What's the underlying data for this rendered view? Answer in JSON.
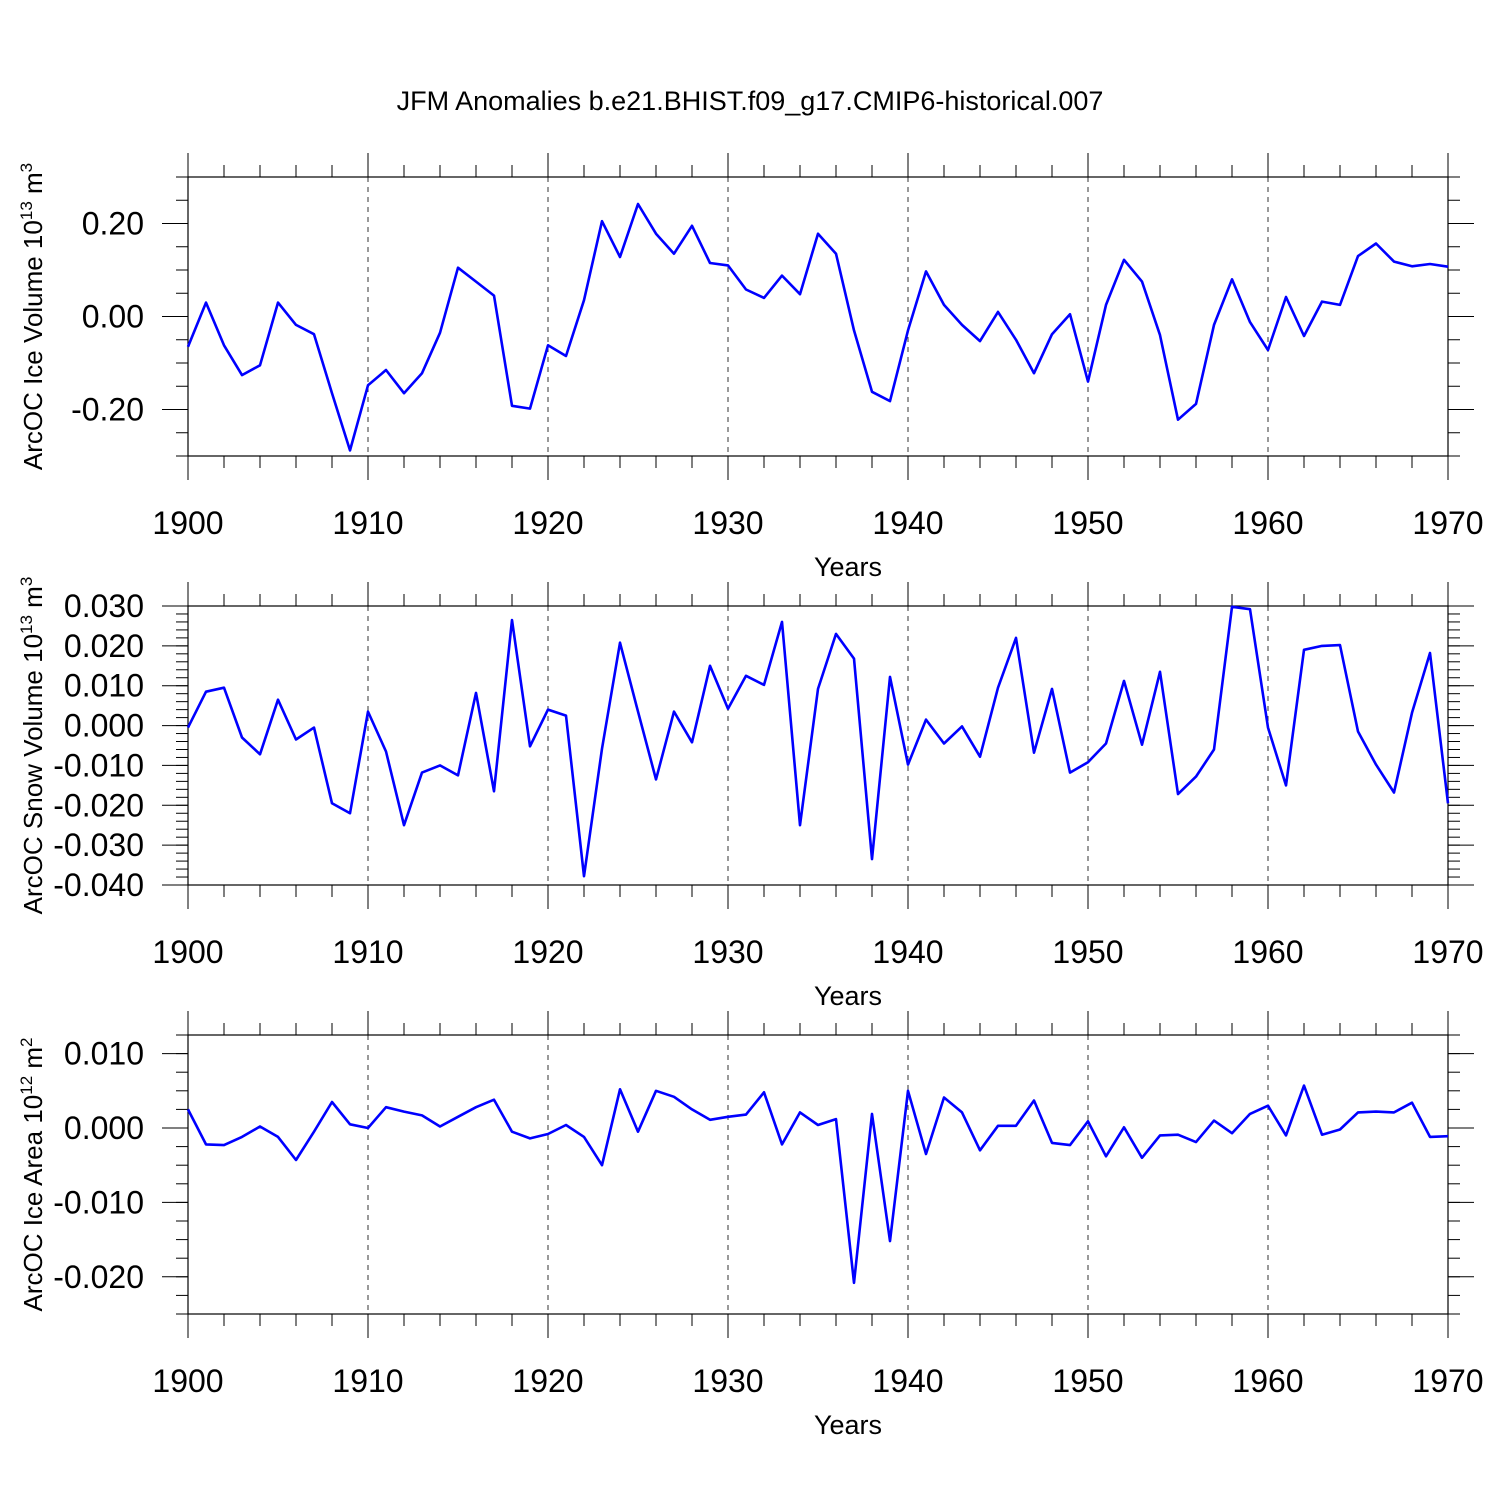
{
  "title": "JFM Anomalies b.e21.BHIST.f09_g17.CMIP6-historical.007",
  "chart_data": [
    {
      "type": "line",
      "xlabel": "Years",
      "ylabel_parts": {
        "main": "ArcOC Ice Volume 10",
        "exp": "13",
        "unit": " m",
        "unit_exp": "3"
      },
      "xlim": [
        1900,
        1970
      ],
      "ylim": [
        -0.3,
        0.3
      ],
      "yticks": [
        -0.2,
        0.0,
        0.2
      ],
      "yminor_step": 0.05,
      "ytick_labels": [
        "-0.20",
        "0.00",
        "0.20"
      ],
      "xticks": [
        1900,
        1910,
        1920,
        1930,
        1940,
        1950,
        1960,
        1970
      ],
      "xtick_labels": [
        "1900",
        "1910",
        "1920",
        "1930",
        "1940",
        "1950",
        "1960",
        "1970"
      ],
      "gridlines": [
        1910,
        1920,
        1930,
        1940,
        1950,
        1960
      ],
      "color": "#0000ff",
      "series": [
        {
          "name": "ArcOC Ice Volume",
          "x_start": 1900,
          "values": [
            -0.065,
            0.03,
            -0.062,
            -0.126,
            -0.105,
            0.03,
            -0.018,
            -0.038,
            -0.165,
            -0.288,
            -0.148,
            -0.115,
            -0.165,
            -0.122,
            -0.035,
            0.105,
            0.075,
            0.045,
            -0.192,
            -0.198,
            -0.062,
            -0.085,
            0.035,
            0.205,
            0.128,
            0.242,
            0.178,
            0.135,
            0.195,
            0.115,
            0.11,
            0.058,
            0.04,
            0.088,
            0.048,
            0.178,
            0.135,
            -0.03,
            -0.162,
            -0.182,
            -0.03,
            0.097,
            0.025,
            -0.018,
            -0.053,
            0.01,
            -0.05,
            -0.122,
            -0.038,
            0.005,
            -0.14,
            0.025,
            0.122,
            0.075,
            -0.04,
            -0.222,
            -0.188,
            -0.018,
            0.08,
            -0.012,
            -0.072,
            0.042,
            -0.042,
            0.032,
            0.025,
            0.13,
            0.157,
            0.118,
            0.108,
            0.113,
            0.107
          ]
        }
      ]
    },
    {
      "type": "line",
      "xlabel": "Years",
      "ylabel_parts": {
        "main": "ArcOC Snow Volume 10",
        "exp": "13",
        "unit": " m",
        "unit_exp": "3"
      },
      "xlim": [
        1900,
        1970
      ],
      "ylim": [
        -0.04,
        0.03
      ],
      "yticks": [
        -0.04,
        -0.03,
        -0.02,
        -0.01,
        0.0,
        0.01,
        0.02,
        0.03
      ],
      "yminor_step": 0.002,
      "ytick_labels": [
        "-0.040",
        "-0.030",
        "-0.020",
        "-0.010",
        "0.000",
        "0.010",
        "0.020",
        "0.030"
      ],
      "xticks": [
        1900,
        1910,
        1920,
        1930,
        1940,
        1950,
        1960,
        1970
      ],
      "xtick_labels": [
        "1900",
        "1910",
        "1920",
        "1930",
        "1940",
        "1950",
        "1960",
        "1970"
      ],
      "gridlines": [
        1910,
        1920,
        1930,
        1940,
        1950,
        1960
      ],
      "color": "#0000ff",
      "series": [
        {
          "name": "ArcOC Snow Volume",
          "x_start": 1900,
          "values": [
            -0.0005,
            0.0085,
            0.0095,
            -0.003,
            -0.0072,
            0.0065,
            -0.0035,
            -0.0005,
            -0.0195,
            -0.022,
            0.0035,
            -0.0065,
            -0.025,
            -0.0118,
            -0.01,
            -0.0125,
            0.0082,
            -0.0165,
            0.0265,
            -0.0052,
            0.004,
            0.0025,
            -0.0378,
            -0.0058,
            0.0208,
            0.0035,
            -0.0135,
            0.0035,
            -0.0042,
            0.015,
            0.0042,
            0.0125,
            0.0102,
            0.026,
            -0.025,
            0.0092,
            0.023,
            0.0168,
            -0.0335,
            0.0122,
            -0.0098,
            0.0015,
            -0.0045,
            -0.0002,
            -0.0078,
            0.0095,
            0.022,
            -0.0068,
            0.0092,
            -0.0118,
            -0.0092,
            -0.0045,
            0.0112,
            -0.0048,
            0.0135,
            -0.0172,
            -0.0128,
            -0.006,
            0.0298,
            0.0292,
            -0.0005,
            -0.015,
            0.019,
            0.02,
            0.0202,
            -0.0015,
            -0.0098,
            -0.0168,
            0.0032,
            0.0182,
            -0.0195
          ]
        }
      ]
    },
    {
      "type": "line",
      "xlabel": "Years",
      "ylabel_parts": {
        "main": "ArcOC Ice Area 10",
        "exp": "12",
        "unit": " m",
        "unit_exp": "2"
      },
      "xlim": [
        1900,
        1970
      ],
      "ylim": [
        -0.025,
        0.0125
      ],
      "yticks": [
        -0.02,
        -0.01,
        0.0,
        0.01
      ],
      "yminor_step": 0.0025,
      "ytick_labels": [
        "-0.020",
        "-0.010",
        "0.000",
        "0.010"
      ],
      "xticks": [
        1900,
        1910,
        1920,
        1930,
        1940,
        1950,
        1960,
        1970
      ],
      "xtick_labels": [
        "1900",
        "1910",
        "1920",
        "1930",
        "1940",
        "1950",
        "1960",
        "1970"
      ],
      "gridlines": [
        1910,
        1920,
        1930,
        1940,
        1950,
        1960
      ],
      "color": "#0000ff",
      "series": [
        {
          "name": "ArcOC Ice Area",
          "x_start": 1900,
          "values": [
            0.0025,
            -0.0022,
            -0.0023,
            -0.0012,
            0.0002,
            -0.0012,
            -0.0043,
            -0.0005,
            0.0035,
            0.0005,
            0.0,
            0.0028,
            0.0022,
            0.0017,
            0.0002,
            0.0015,
            0.0028,
            0.0038,
            -0.0005,
            -0.0014,
            -0.0008,
            0.0004,
            -0.0012,
            -0.005,
            0.0052,
            -0.0005,
            0.005,
            0.0042,
            0.0025,
            0.0011,
            0.0015,
            0.0018,
            0.0048,
            -0.0022,
            0.0021,
            0.0004,
            0.0012,
            -0.0208,
            0.0019,
            -0.0152,
            0.005,
            -0.0035,
            0.0041,
            0.0021,
            -0.003,
            0.0003,
            0.0003,
            0.0037,
            -0.002,
            -0.0023,
            0.0009,
            -0.0038,
            0.0001,
            -0.004,
            -0.001,
            -0.0009,
            -0.0019,
            0.001,
            -0.0007,
            0.0019,
            0.003,
            -0.001,
            0.0057,
            -0.0009,
            -0.0002,
            0.0021,
            0.0022,
            0.0021,
            0.0034,
            -0.0012,
            -0.0011
          ]
        }
      ]
    }
  ]
}
